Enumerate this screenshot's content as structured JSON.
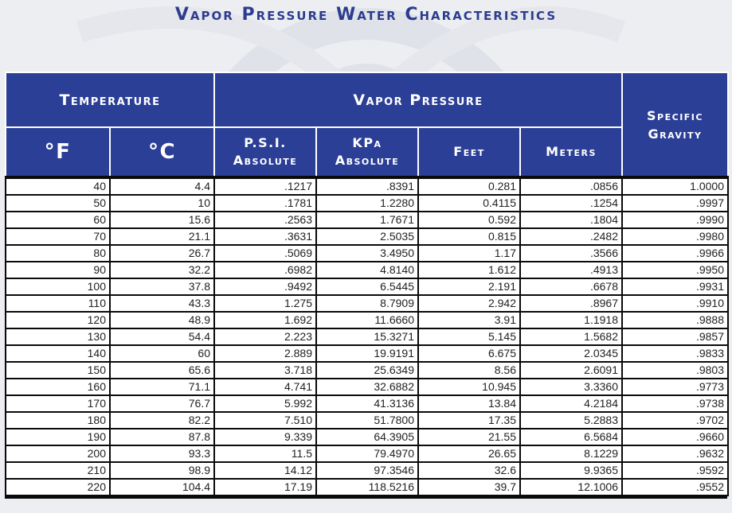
{
  "title": "Vapor Pressure Water Characteristics",
  "headers": {
    "temperature": "Temperature",
    "vapor_pressure": "Vapor Pressure",
    "specific_gravity_line1": "Specific",
    "specific_gravity_line2": "Gravity",
    "f": "°F",
    "c": "°C",
    "psi_line1": "P.S.I.",
    "psi_line2": "Absolute",
    "kpa_line1": "KPa",
    "kpa_line2": "Absolute",
    "feet": "Feet",
    "meters": "Meters"
  },
  "rows": [
    [
      "40",
      "4.4",
      ".1217",
      ".8391",
      "0.281",
      ".0856",
      "1.0000"
    ],
    [
      "50",
      "10",
      ".1781",
      "1.2280",
      "0.4115",
      ".1254",
      ".9997"
    ],
    [
      "60",
      "15.6",
      ".2563",
      "1.7671",
      "0.592",
      ".1804",
      ".9990"
    ],
    [
      "70",
      "21.1",
      ".3631",
      "2.5035",
      "0.815",
      ".2482",
      ".9980"
    ],
    [
      "80",
      "26.7",
      ".5069",
      "3.4950",
      "1.17",
      ".3566",
      ".9966"
    ],
    [
      "90",
      "32.2",
      ".6982",
      "4.8140",
      "1.612",
      ".4913",
      ".9950"
    ],
    [
      "100",
      "37.8",
      ".9492",
      "6.5445",
      "2.191",
      ".6678",
      ".9931"
    ],
    [
      "110",
      "43.3",
      "1.275",
      "8.7909",
      "2.942",
      ".8967",
      ".9910"
    ],
    [
      "120",
      "48.9",
      "1.692",
      "11.6660",
      "3.91",
      "1.1918",
      ".9888"
    ],
    [
      "130",
      "54.4",
      "2.223",
      "15.3271",
      "5.145",
      "1.5682",
      ".9857"
    ],
    [
      "140",
      "60",
      "2.889",
      "19.9191",
      "6.675",
      "2.0345",
      ".9833"
    ],
    [
      "150",
      "65.6",
      "3.718",
      "25.6349",
      "8.56",
      "2.6091",
      ".9803"
    ],
    [
      "160",
      "71.1",
      "4.741",
      "32.6882",
      "10.945",
      "3.3360",
      ".9773"
    ],
    [
      "170",
      "76.7",
      "5.992",
      "41.3136",
      "13.84",
      "4.2184",
      ".9738"
    ],
    [
      "180",
      "82.2",
      "7.510",
      "51.7800",
      "17.35",
      "5.2883",
      ".9702"
    ],
    [
      "190",
      "87.8",
      "9.339",
      "64.3905",
      "21.55",
      "6.5684",
      ".9660"
    ],
    [
      "200",
      "93.3",
      "11.5",
      "79.4970",
      "26.65",
      "8.1229",
      ".9632"
    ],
    [
      "210",
      "98.9",
      "14.12",
      "97.3546",
      "32.6",
      "9.9365",
      ".9592"
    ],
    [
      "220",
      "104.4",
      "17.19",
      "118.5216",
      "39.7",
      "12.1006",
      ".9552"
    ]
  ]
}
